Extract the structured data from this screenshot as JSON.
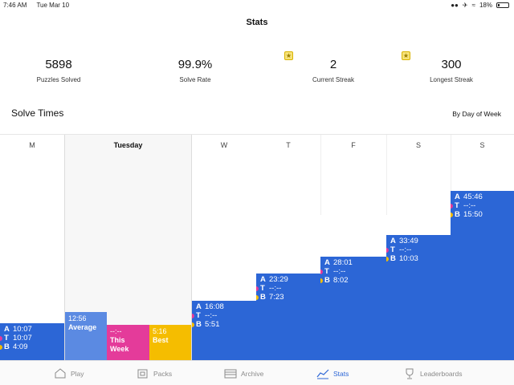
{
  "status_bar": {
    "time": "7:46 AM",
    "date": "Tue Mar 10",
    "battery": "18%"
  },
  "nav": {
    "title": "Stats"
  },
  "summary": [
    {
      "value": "5898",
      "label": "Puzzles Solved",
      "star": false
    },
    {
      "value": "99.9%",
      "label": "Solve Rate",
      "star": false
    },
    {
      "value": "2",
      "label": "Current Streak",
      "star": true
    },
    {
      "value": "300",
      "label": "Longest Streak",
      "star": true
    }
  ],
  "solve_times": {
    "title": "Solve Times",
    "filter": "By Day of Week"
  },
  "days": [
    {
      "label": "M",
      "A": "10:07",
      "T": "10:07",
      "B": "4:09"
    },
    {
      "label": "Tuesday",
      "selected": true
    },
    {
      "label": "W",
      "A": "16:08",
      "T": "--:--",
      "B": "5:51"
    },
    {
      "label": "T",
      "A": "23:29",
      "T": "--:--",
      "B": "7:23"
    },
    {
      "label": "F",
      "A": "28:01",
      "T": "--:--",
      "B": "8:02"
    },
    {
      "label": "S",
      "A": "33:49",
      "T": "--:--",
      "B": "10:03"
    },
    {
      "label": "S",
      "A": "45:46",
      "T": "--:--",
      "B": "15:50"
    }
  ],
  "tuesday_detail": {
    "average": {
      "value": "12:56",
      "label": "Average"
    },
    "this_week": {
      "value": "--:--",
      "label_line1": "This",
      "label_line2": "Week"
    },
    "best": {
      "value": "5:16",
      "label": "Best"
    }
  },
  "legend_keys": {
    "a": "A",
    "t": "T",
    "b": "B"
  },
  "colors": {
    "accent": "#2c66d6",
    "today": "#e43b9a",
    "best": "#f5bd00",
    "average": "#5b8ae2"
  },
  "tabs": [
    {
      "label": "Play",
      "icon": "play-icon",
      "active": false
    },
    {
      "label": "Packs",
      "icon": "packs-icon",
      "active": false
    },
    {
      "label": "Archive",
      "icon": "archive-icon",
      "active": false
    },
    {
      "label": "Stats",
      "icon": "stats-icon",
      "active": true
    },
    {
      "label": "Leaderboards",
      "icon": "trophy-icon",
      "active": false
    }
  ]
}
